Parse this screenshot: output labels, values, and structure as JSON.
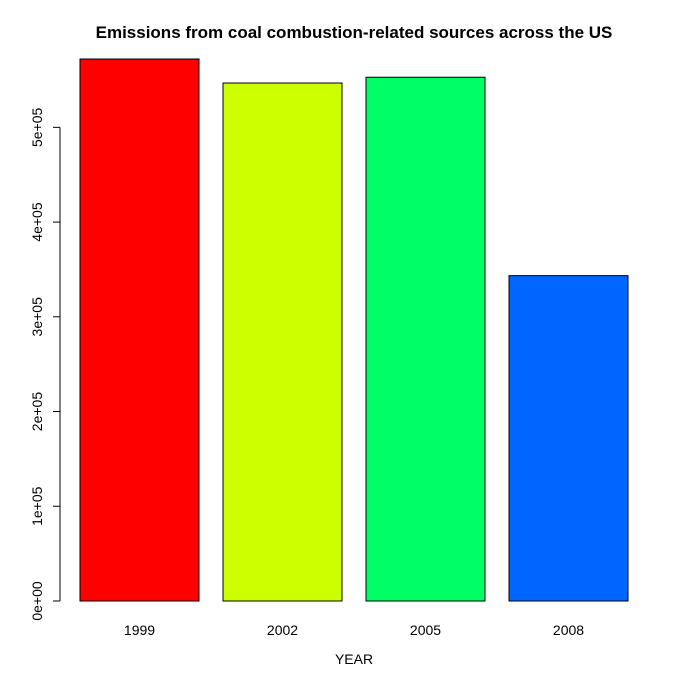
{
  "chart_data": {
    "type": "bar",
    "title": "Emissions from coal combustion-related sources across the US",
    "xlabel": "YEAR",
    "ylabel": "",
    "categories": [
      "1999",
      "2002",
      "2005",
      "2008"
    ],
    "values": [
      572126.5,
      546789.2,
      552881.5,
      343432.2
    ],
    "colors": [
      "#FF0000",
      "#CCFF00",
      "#00FF66",
      "#0066FF"
    ],
    "ylim": [
      0,
      572126.5
    ],
    "y_ticks": [
      0,
      100000,
      200000,
      300000,
      400000,
      500000
    ],
    "y_tick_labels": [
      "0e+00",
      "1e+05",
      "2e+05",
      "3e+05",
      "4e+05",
      "5e+05"
    ],
    "grid": false,
    "legend": "none"
  }
}
